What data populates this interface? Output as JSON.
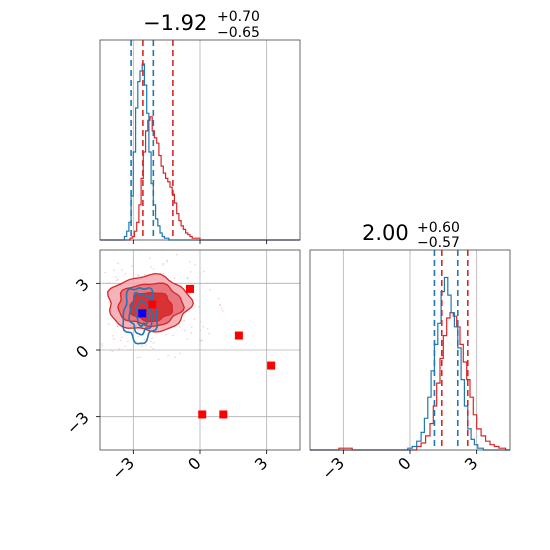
{
  "chart_data": {
    "type": "corner",
    "axis_range": [
      -4.5,
      4.5
    ],
    "ticks": [
      -3,
      0,
      3
    ],
    "tick_labels": [
      "−3",
      "0",
      "3"
    ],
    "grid": true,
    "series": [
      {
        "color": "#d62728"
      },
      {
        "color": "#1f77b4"
      }
    ],
    "params": [
      {
        "title": {
          "median": "−1.92",
          "plus": "+0.70",
          "minus": "−0.65"
        },
        "quantile_lines": [
          {
            "color": "#d62728",
            "x": [
              -2.57,
              -1.22
            ]
          },
          {
            "color": "#1f77b4",
            "x": [
              -3.1,
              -2.1
            ]
          }
        ]
      },
      {
        "title": {
          "median": "2.00",
          "plus": "+0.60",
          "minus": "−0.57"
        },
        "quantile_lines": [
          {
            "color": "#1f77b4",
            "x": [
              1.1,
              2.15
            ]
          },
          {
            "color": "#d62728",
            "x": [
              1.43,
              2.6
            ]
          }
        ]
      }
    ],
    "histograms": {
      "p1": {
        "red": [
          [
            -4.5,
            0
          ],
          [
            -3.3,
            0
          ],
          [
            -3.15,
            0.01
          ],
          [
            -3.05,
            0.02
          ],
          [
            -2.95,
            0.05
          ],
          [
            -2.85,
            0.1
          ],
          [
            -2.75,
            0.2
          ],
          [
            -2.65,
            0.35
          ],
          [
            -2.55,
            0.5
          ],
          [
            -2.45,
            0.62
          ],
          [
            -2.35,
            0.68
          ],
          [
            -2.25,
            0.7
          ],
          [
            -2.15,
            0.62
          ],
          [
            -2.05,
            0.58
          ],
          [
            -1.95,
            0.55
          ],
          [
            -1.85,
            0.48
          ],
          [
            -1.75,
            0.42
          ],
          [
            -1.65,
            0.38
          ],
          [
            -1.55,
            0.35
          ],
          [
            -1.45,
            0.33
          ],
          [
            -1.35,
            0.3
          ],
          [
            -1.25,
            0.26
          ],
          [
            -1.15,
            0.21
          ],
          [
            -1.05,
            0.15
          ],
          [
            -0.95,
            0.11
          ],
          [
            -0.85,
            0.08
          ],
          [
            -0.75,
            0.06
          ],
          [
            -0.65,
            0.04
          ],
          [
            -0.55,
            0.03
          ],
          [
            -0.45,
            0.02
          ],
          [
            -0.35,
            0.01
          ],
          [
            0.0,
            0
          ],
          [
            4.5,
            0
          ]
        ],
        "blue": [
          [
            -4.5,
            0
          ],
          [
            -3.5,
            0
          ],
          [
            -3.4,
            0.02
          ],
          [
            -3.3,
            0.05
          ],
          [
            -3.2,
            0.1
          ],
          [
            -3.1,
            0.25
          ],
          [
            -3.0,
            0.5
          ],
          [
            -2.9,
            0.75
          ],
          [
            -2.8,
            0.9
          ],
          [
            -2.7,
            0.96
          ],
          [
            -2.6,
            1.0
          ],
          [
            -2.5,
            0.88
          ],
          [
            -2.4,
            0.72
          ],
          [
            -2.3,
            0.5
          ],
          [
            -2.2,
            0.32
          ],
          [
            -2.1,
            0.2
          ],
          [
            -2.0,
            0.12
          ],
          [
            -1.9,
            0.08
          ],
          [
            -1.8,
            0.04
          ],
          [
            -1.7,
            0.02
          ],
          [
            -1.6,
            0.01
          ],
          [
            -1.4,
            0
          ],
          [
            4.5,
            0
          ]
        ]
      },
      "p2": {
        "blue": [
          [
            -4.5,
            0
          ],
          [
            -0.2,
            0
          ],
          [
            -0.1,
            0.01
          ],
          [
            0.1,
            0.02
          ],
          [
            0.3,
            0.05
          ],
          [
            0.5,
            0.1
          ],
          [
            0.65,
            0.18
          ],
          [
            0.8,
            0.3
          ],
          [
            0.95,
            0.45
          ],
          [
            1.1,
            0.6
          ],
          [
            1.25,
            0.72
          ],
          [
            1.4,
            0.9
          ],
          [
            1.55,
            0.98
          ],
          [
            1.7,
            0.88
          ],
          [
            1.85,
            0.78
          ],
          [
            2.0,
            0.7
          ],
          [
            2.15,
            0.58
          ],
          [
            2.3,
            0.4
          ],
          [
            2.45,
            0.25
          ],
          [
            2.6,
            0.12
          ],
          [
            2.75,
            0.06
          ],
          [
            2.9,
            0.03
          ],
          [
            3.05,
            0.01
          ],
          [
            3.3,
            0
          ],
          [
            4.5,
            0
          ]
        ],
        "red": [
          [
            -4.5,
            0
          ],
          [
            -3.3,
            0
          ],
          [
            -3.2,
            0.01
          ],
          [
            -2.8,
            0.01
          ],
          [
            -2.6,
            0
          ],
          [
            -0.5,
            0
          ],
          [
            0.3,
            0.02
          ],
          [
            0.5,
            0.04
          ],
          [
            0.7,
            0.08
          ],
          [
            0.9,
            0.15
          ],
          [
            1.05,
            0.25
          ],
          [
            1.2,
            0.38
          ],
          [
            1.35,
            0.52
          ],
          [
            1.5,
            0.65
          ],
          [
            1.65,
            0.75
          ],
          [
            1.8,
            0.78
          ],
          [
            1.95,
            0.76
          ],
          [
            2.1,
            0.7
          ],
          [
            2.25,
            0.6
          ],
          [
            2.4,
            0.5
          ],
          [
            2.55,
            0.4
          ],
          [
            2.7,
            0.3
          ],
          [
            2.85,
            0.2
          ],
          [
            3.0,
            0.12
          ],
          [
            3.2,
            0.08
          ],
          [
            3.4,
            0.05
          ],
          [
            3.6,
            0.03
          ],
          [
            3.8,
            0.02
          ],
          [
            4.0,
            0.01
          ],
          [
            4.3,
            0
          ],
          [
            4.5,
            0
          ]
        ]
      }
    },
    "contours_2d": {
      "red": [
        {
          "cx": -2.3,
          "cy": 2.1,
          "rx": 1.85,
          "ry": 1.25,
          "level": 1
        },
        {
          "cx": -2.25,
          "cy": 2.05,
          "rx": 1.45,
          "ry": 0.95,
          "level": 2
        },
        {
          "cx": -2.2,
          "cy": 1.95,
          "rx": 0.95,
          "ry": 0.65,
          "level": 3
        }
      ],
      "blue": [
        {
          "cx": -2.7,
          "cy": 1.6,
          "rx": 0.75,
          "ry": 1.25
        },
        {
          "cx": -2.65,
          "cy": 1.65,
          "rx": 0.5,
          "ry": 0.9
        },
        {
          "cx": -2.6,
          "cy": 1.65,
          "rx": 0.28,
          "ry": 0.55
        }
      ]
    },
    "points_2d": {
      "red_squares": [
        [
          -0.45,
          2.75
        ],
        [
          -2.15,
          2.05
        ],
        [
          1.75,
          0.65
        ],
        [
          3.2,
          -0.7
        ],
        [
          0.1,
          -2.9
        ],
        [
          1.05,
          -2.9
        ]
      ],
      "blue_squares": [
        [
          -2.6,
          1.65
        ]
      ]
    }
  }
}
